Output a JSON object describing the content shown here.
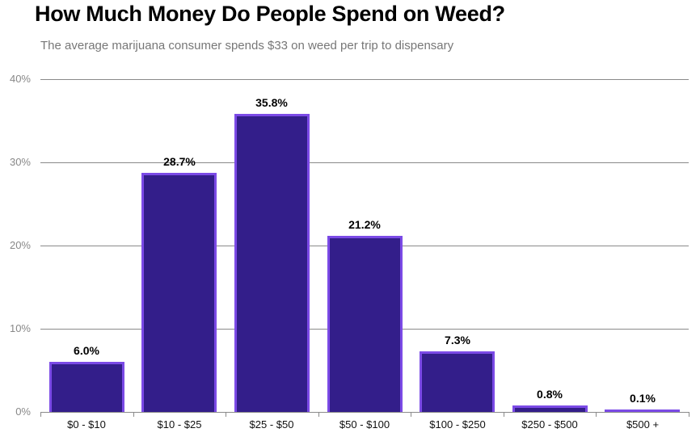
{
  "header": {
    "title": "How Much Money Do People Spend on Weed?",
    "subtitle": "The average marijuana consumer spends $33 on weed per trip to dispensary"
  },
  "axis": {
    "y_ticks": [
      "0%",
      "10%",
      "20%",
      "30%",
      "40%"
    ]
  },
  "bars": [
    {
      "category": "$0 - $10",
      "label": "6.0%"
    },
    {
      "category": "$10 - $25",
      "label": "28.7%"
    },
    {
      "category": "$25 - $50",
      "label": "35.8%"
    },
    {
      "category": "$50 - $100",
      "label": "21.2%"
    },
    {
      "category": "$100 - $250",
      "label": "7.3%"
    },
    {
      "category": "$250 - $500",
      "label": "0.8%"
    },
    {
      "category": "$500 +",
      "label": "0.1%"
    }
  ],
  "colors": {
    "bar_fill": "#331e8a",
    "bar_border": "#7b4ae6"
  },
  "chart_data": {
    "type": "bar",
    "title": "How Much Money Do People Spend on Weed?",
    "subtitle": "The average marijuana consumer spends $33 on weed per trip to dispensary",
    "categories": [
      "$0 - $10",
      "$10 - $25",
      "$25 - $50",
      "$50 - $100",
      "$100 - $250",
      "$250 - $500",
      "$500 +"
    ],
    "values": [
      6.0,
      28.7,
      35.8,
      21.2,
      7.3,
      0.8,
      0.1
    ],
    "xlabel": "",
    "ylabel": "",
    "ylim": [
      0,
      40
    ],
    "y_ticks": [
      "0%",
      "10%",
      "20%",
      "30%",
      "40%"
    ],
    "grid": true,
    "data_labels": [
      "6.0%",
      "28.7%",
      "35.8%",
      "21.2%",
      "7.3%",
      "0.8%",
      "0.1%"
    ],
    "legend": null
  }
}
